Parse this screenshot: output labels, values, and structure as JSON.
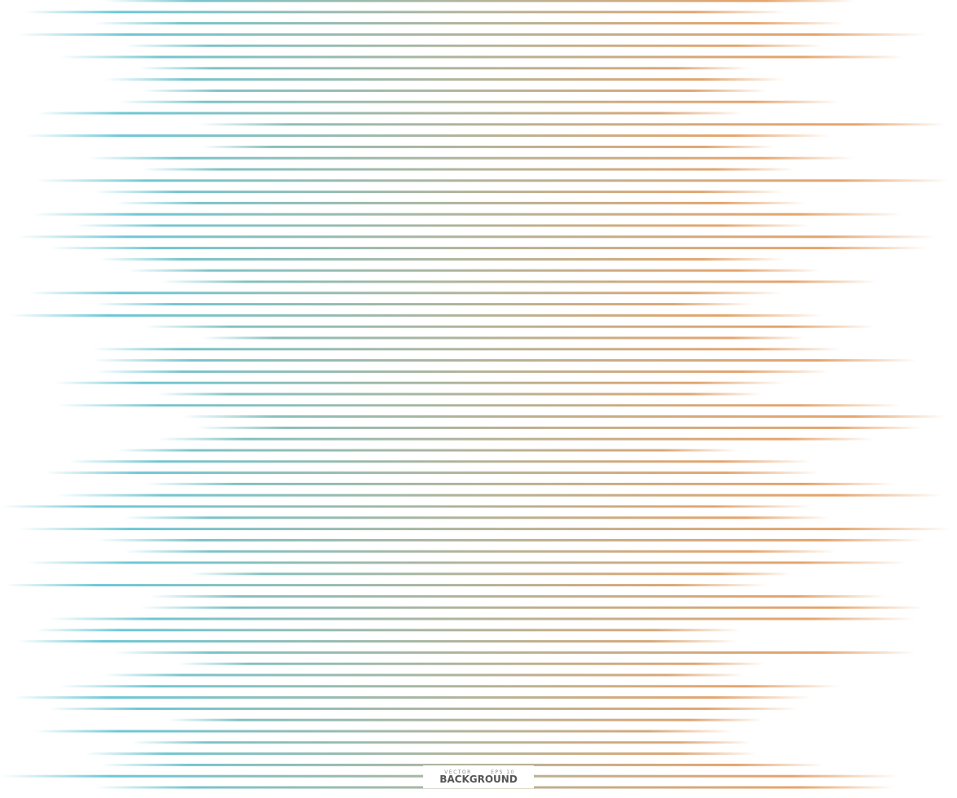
{
  "caption": {
    "small_left": "VECTOR",
    "small_right": "EPS 10",
    "title": "BACKGROUND"
  }
}
